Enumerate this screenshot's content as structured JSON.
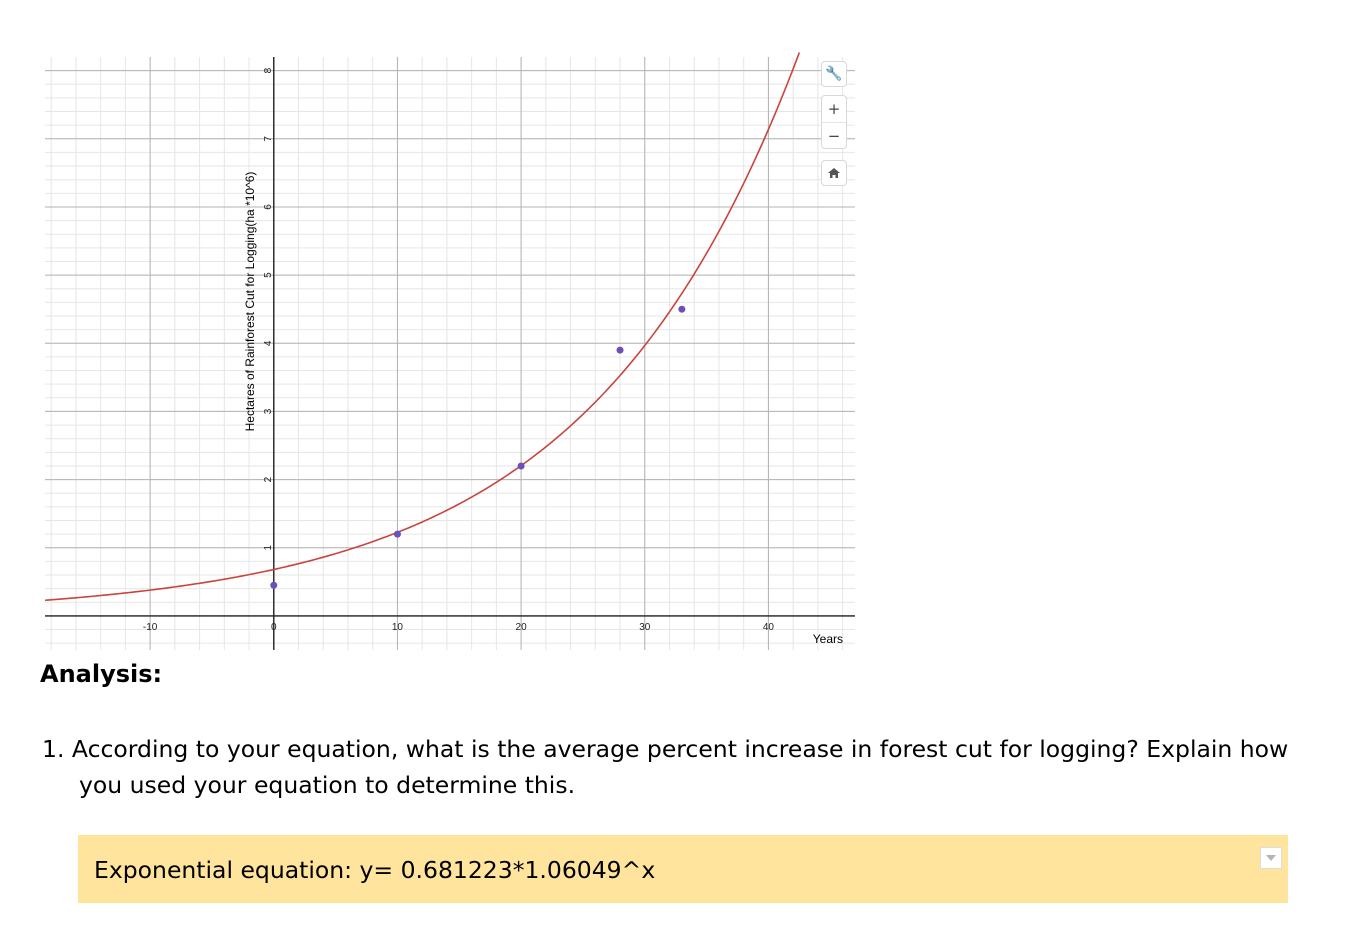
{
  "graph": {
    "x_axis_title": "Years",
    "y_axis_title": "Hectares of Rainforest Cut for Logging(ha *10^6)",
    "x_tick_labels": [
      "-10",
      "0",
      "10",
      "20",
      "30",
      "40"
    ],
    "y_tick_labels": [
      "1",
      "2",
      "3",
      "4",
      "5",
      "6",
      "7",
      "8"
    ],
    "toolbar": {
      "settings_icon": "wrench-icon",
      "zoom_in_label": "+",
      "zoom_out_label": "−",
      "home_icon": "home-icon"
    }
  },
  "chart_data": {
    "type": "scatter",
    "xlim": [
      -18.5,
      47
    ],
    "ylim": [
      -0.5,
      8.2
    ],
    "x_ticks": [
      -10,
      0,
      10,
      20,
      30,
      40
    ],
    "y_ticks": [
      1,
      2,
      3,
      4,
      5,
      6,
      7,
      8
    ],
    "grid": true,
    "points": [
      {
        "x": 0,
        "y": 0.45
      },
      {
        "x": 10,
        "y": 1.2
      },
      {
        "x": 20,
        "y": 2.2
      },
      {
        "x": 28,
        "y": 3.9
      },
      {
        "x": 33,
        "y": 4.5
      }
    ],
    "curve": {
      "type": "exponential",
      "a": 0.681223,
      "b": 1.06049
    },
    "colors": {
      "points": "#6b4fbb",
      "curve": "#c8453f",
      "grid_major": "#b3b3b3",
      "grid_minor": "#e6e6e6"
    }
  },
  "analysis": {
    "heading": "Analysis:",
    "question_number": "1.",
    "question_text_line1": "According to your equation, what is the average percent increase in forest cut for logging? Explain how",
    "question_text_line2": "you used your equation to determine this.",
    "answer_text": "Exponential equation: y= 0.681223*1.06049^x",
    "answer_bg_color": "#ffe49e"
  }
}
